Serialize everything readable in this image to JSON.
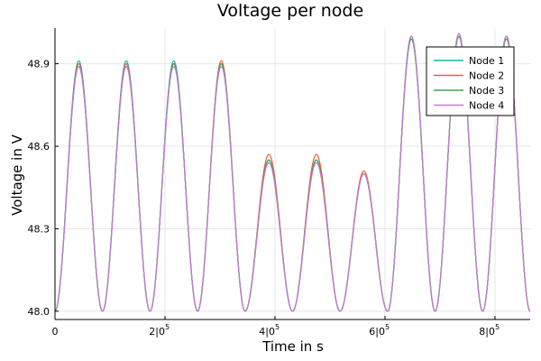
{
  "chart_data": {
    "type": "line",
    "title": "Voltage per node",
    "xlabel": "Time in s",
    "ylabel": "Voltage in V",
    "xlim": [
      0,
      864000
    ],
    "ylim": [
      47.97,
      49.03
    ],
    "x_ticks": [
      {
        "value": 0,
        "mantissa": "0",
        "exp": ""
      },
      {
        "value": 200000,
        "mantissa": "2|0",
        "exp": "5"
      },
      {
        "value": 400000,
        "mantissa": "4|0",
        "exp": "5"
      },
      {
        "value": 600000,
        "mantissa": "6|0",
        "exp": "5"
      },
      {
        "value": 800000,
        "mantissa": "8|0",
        "exp": "5"
      }
    ],
    "y_ticks": [
      {
        "value": 48.0,
        "label": "48.0"
      },
      {
        "value": 48.3,
        "label": "48.3"
      },
      {
        "value": 48.6,
        "label": "48.6"
      },
      {
        "value": 48.9,
        "label": "48.9"
      }
    ],
    "grid": true,
    "legend_position": "top-right",
    "cycle_period": 86400,
    "baseline": 48.0,
    "series": [
      {
        "name": "Node 1",
        "color": "#1ab4b4",
        "daily_peaks": [
          48.91,
          48.91,
          48.91,
          48.9,
          48.55,
          48.55,
          48.5,
          49.0,
          49.0,
          49.0
        ]
      },
      {
        "name": "Node 2",
        "color": "#e8603c",
        "daily_peaks": [
          48.9,
          48.9,
          48.9,
          48.91,
          48.57,
          48.57,
          48.51,
          48.99,
          49.0,
          49.0
        ]
      },
      {
        "name": "Node 3",
        "color": "#3ca550",
        "daily_peaks": [
          48.89,
          48.89,
          48.9,
          48.9,
          48.55,
          48.55,
          48.5,
          48.99,
          49.0,
          48.99
        ]
      },
      {
        "name": "Node 4",
        "color": "#c27ad3",
        "daily_peaks": [
          48.89,
          48.89,
          48.89,
          48.89,
          48.54,
          48.54,
          48.5,
          49.0,
          49.01,
          49.0
        ]
      }
    ]
  }
}
